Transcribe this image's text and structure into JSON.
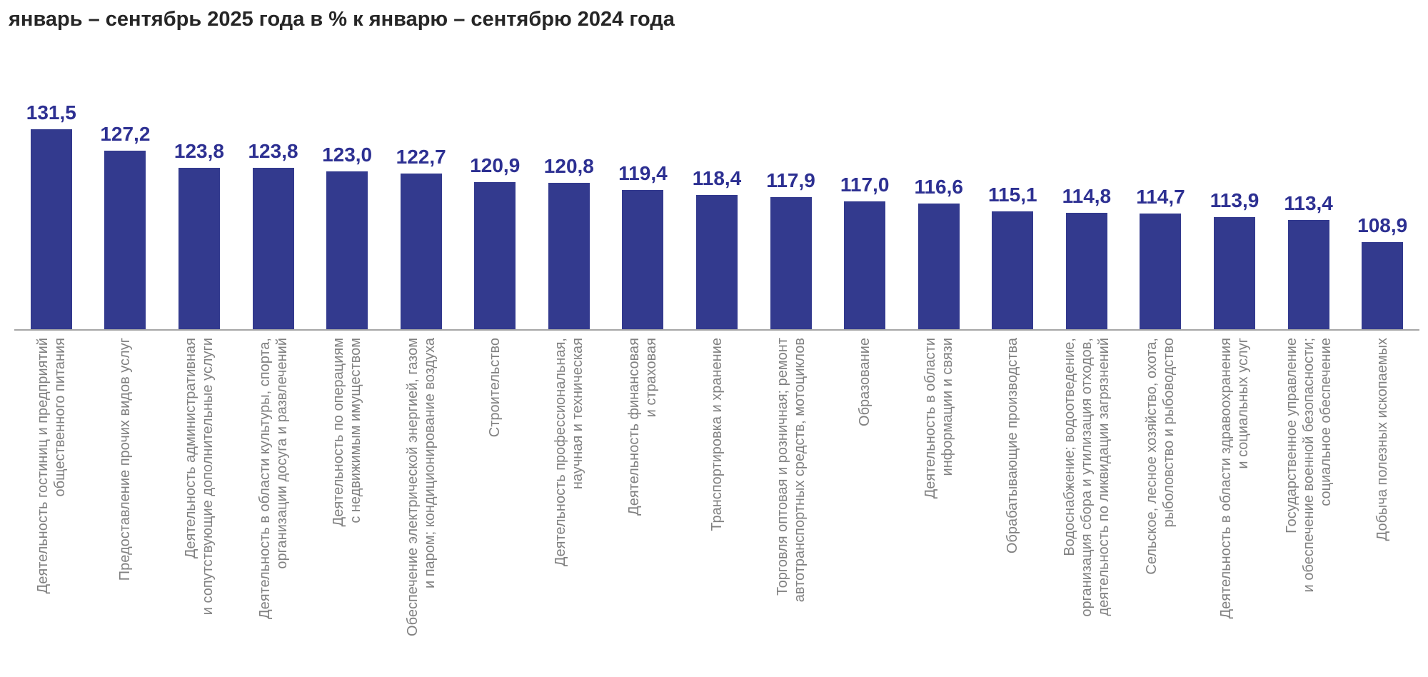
{
  "title": "январь – сентябрь 2025 года в % к январю – сентябрю 2024 года",
  "colors": {
    "bar": "#333a8e",
    "value_label": "#2d3092",
    "category_label": "#808080",
    "title": "#262626",
    "axis_line": "#a6a6a6"
  },
  "chart_data": {
    "type": "bar",
    "title": "январь – сентябрь 2025 года в % к январю – сентябрю 2024 года",
    "xlabel": "",
    "ylabel": "",
    "grid": false,
    "legend": false,
    "y_axis_visible": false,
    "value_labels_position": "above-bars",
    "category_labels_rotation": "vertical-bottom-to-top",
    "decimal_separator": ",",
    "categories": [
      [
        "Деятельность гостиниц и предприятий",
        "общественного питания"
      ],
      [
        "Предоставление прочих видов услуг"
      ],
      [
        "Деятельность административная",
        "и сопутствующие дополнительные услуги"
      ],
      [
        "Деятельность в области культуры, спорта,",
        "организации досуга и развлечений"
      ],
      [
        "Деятельность по операциям",
        "с недвижимым имуществом"
      ],
      [
        "Обеспечение электрической энергией, газом",
        "и паром; кондиционирование воздуха"
      ],
      [
        "Строительство"
      ],
      [
        "Деятельность профессиональная,",
        "научная и техническая"
      ],
      [
        "Деятельность финансовая",
        "и страховая"
      ],
      [
        "Транспортировка и хранение"
      ],
      [
        "Торговля оптовая и розничная; ремонт",
        "автотранспортных средств, мотоциклов"
      ],
      [
        "Образование"
      ],
      [
        "Деятельность в области",
        "информации и связи"
      ],
      [
        "Обрабатывающие производства"
      ],
      [
        "Водоснабжение; водоотведение,",
        "организация сбора и утилизация отходов,",
        "деятельность по ликвидации загрязнений"
      ],
      [
        "Сельское, лесное хозяйство, охота,",
        "рыболовство и рыбоводство"
      ],
      [
        "Деятельность в области здравоохранения",
        "и социальных услуг"
      ],
      [
        "Государственное управление",
        "и обеспечение военной безопасности;",
        "социальное обеспечение"
      ],
      [
        "Добыча полезных ископаемых"
      ]
    ],
    "values": [
      131.5,
      127.2,
      123.8,
      123.8,
      123.0,
      122.7,
      120.9,
      120.8,
      119.4,
      118.4,
      117.9,
      117.0,
      116.6,
      115.1,
      114.8,
      114.7,
      113.9,
      113.4,
      108.9
    ],
    "value_labels": [
      "131,5",
      "127,2",
      "123,8",
      "123,8",
      "123,0",
      "122,7",
      "120,9",
      "120,8",
      "119,4",
      "118,4",
      "117,9",
      "117,0",
      "116,6",
      "115,1",
      "114,8",
      "114,7",
      "113,9",
      "113,4",
      "108,9"
    ]
  }
}
